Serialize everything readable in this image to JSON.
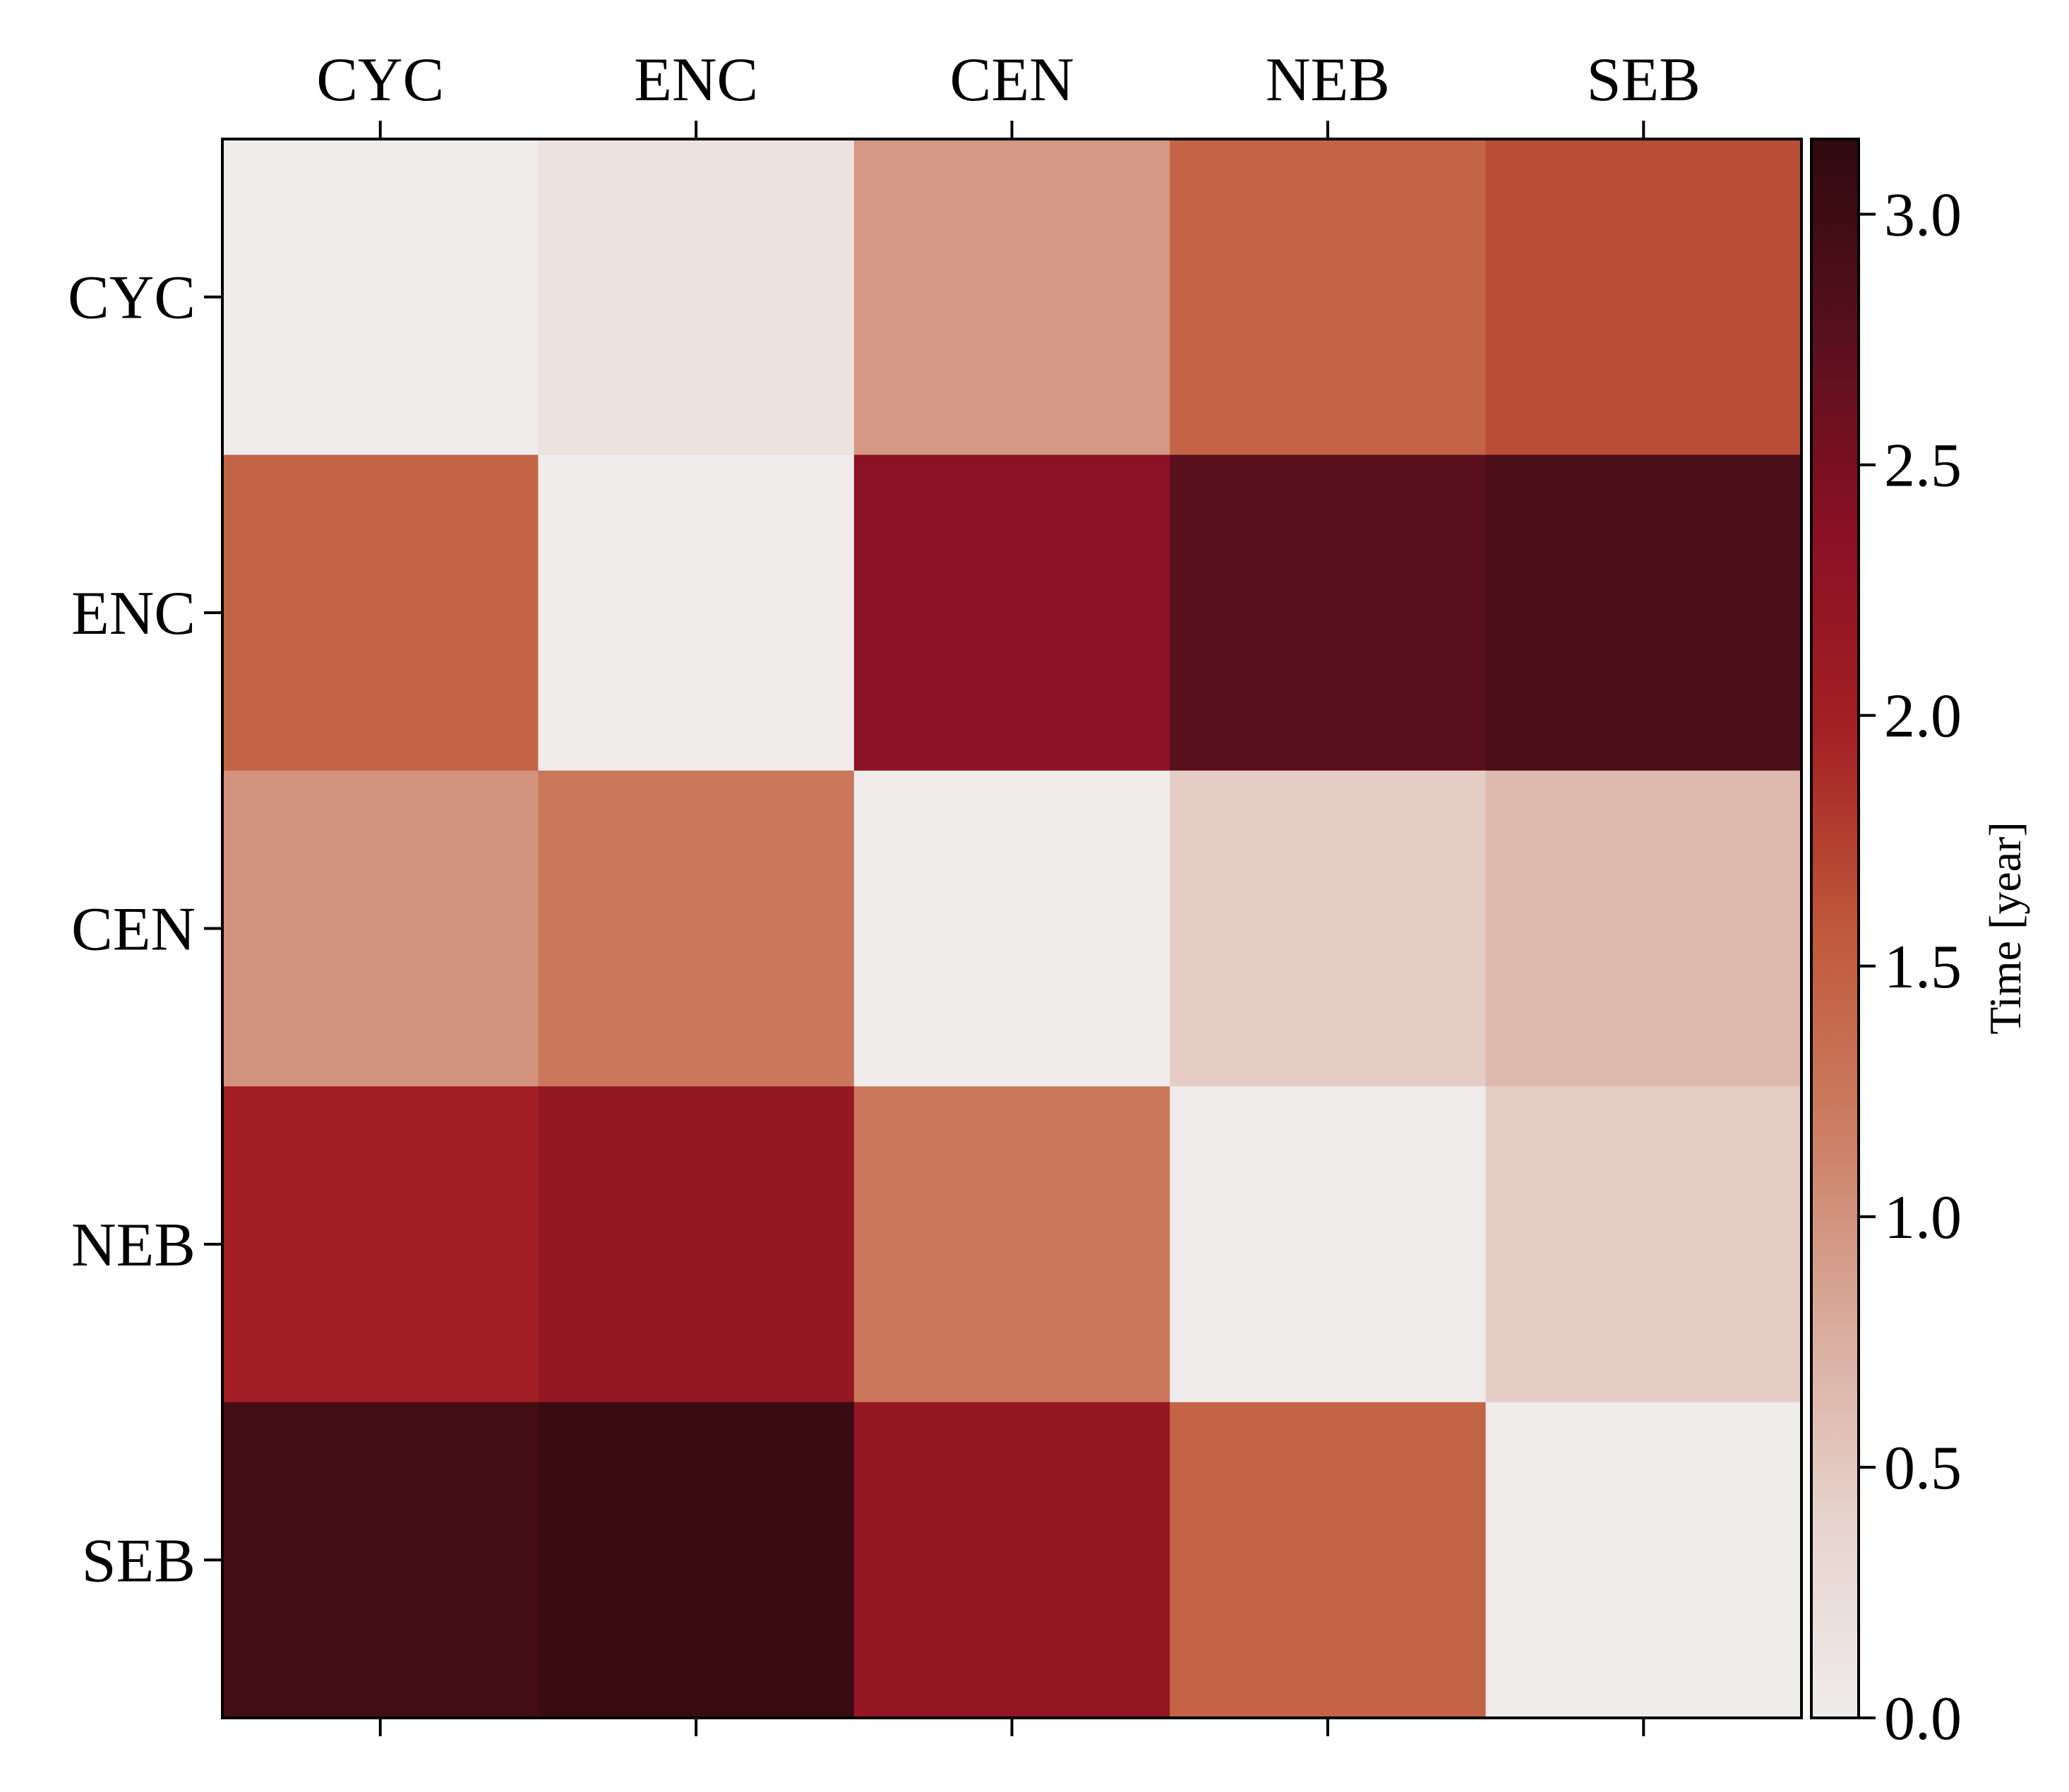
{
  "chart_data": {
    "type": "heatmap",
    "title": "",
    "x_categories": [
      "CYC",
      "ENC",
      "CEN",
      "NEB",
      "SEB"
    ],
    "y_categories": [
      "CYC",
      "ENC",
      "CEN",
      "NEB",
      "SEB"
    ],
    "values": [
      [
        0.0,
        0.15,
        0.95,
        1.45,
        1.65
      ],
      [
        1.45,
        0.0,
        2.35,
        2.75,
        2.9
      ],
      [
        1.0,
        1.25,
        0.0,
        0.45,
        0.65
      ],
      [
        2.0,
        2.2,
        1.25,
        0.0,
        0.45
      ],
      [
        2.95,
        3.05,
        2.2,
        1.45,
        0.0
      ]
    ],
    "colorbar": {
      "label": "Time [year]",
      "vmin": 0.0,
      "vmax": 3.15,
      "ticks": [
        "0.0",
        "0.5",
        "1.0",
        "1.5",
        "2.0",
        "2.5",
        "3.0"
      ],
      "colormap": [
        "#efeceb",
        "#e7d3cd",
        "#d9ab9c",
        "#cc7d62",
        "#c0583a",
        "#a32023",
        "#8b1025",
        "#58101d",
        "#2f0a0e"
      ]
    },
    "x_ticks_position": "top",
    "legend": "none",
    "grid": false
  }
}
